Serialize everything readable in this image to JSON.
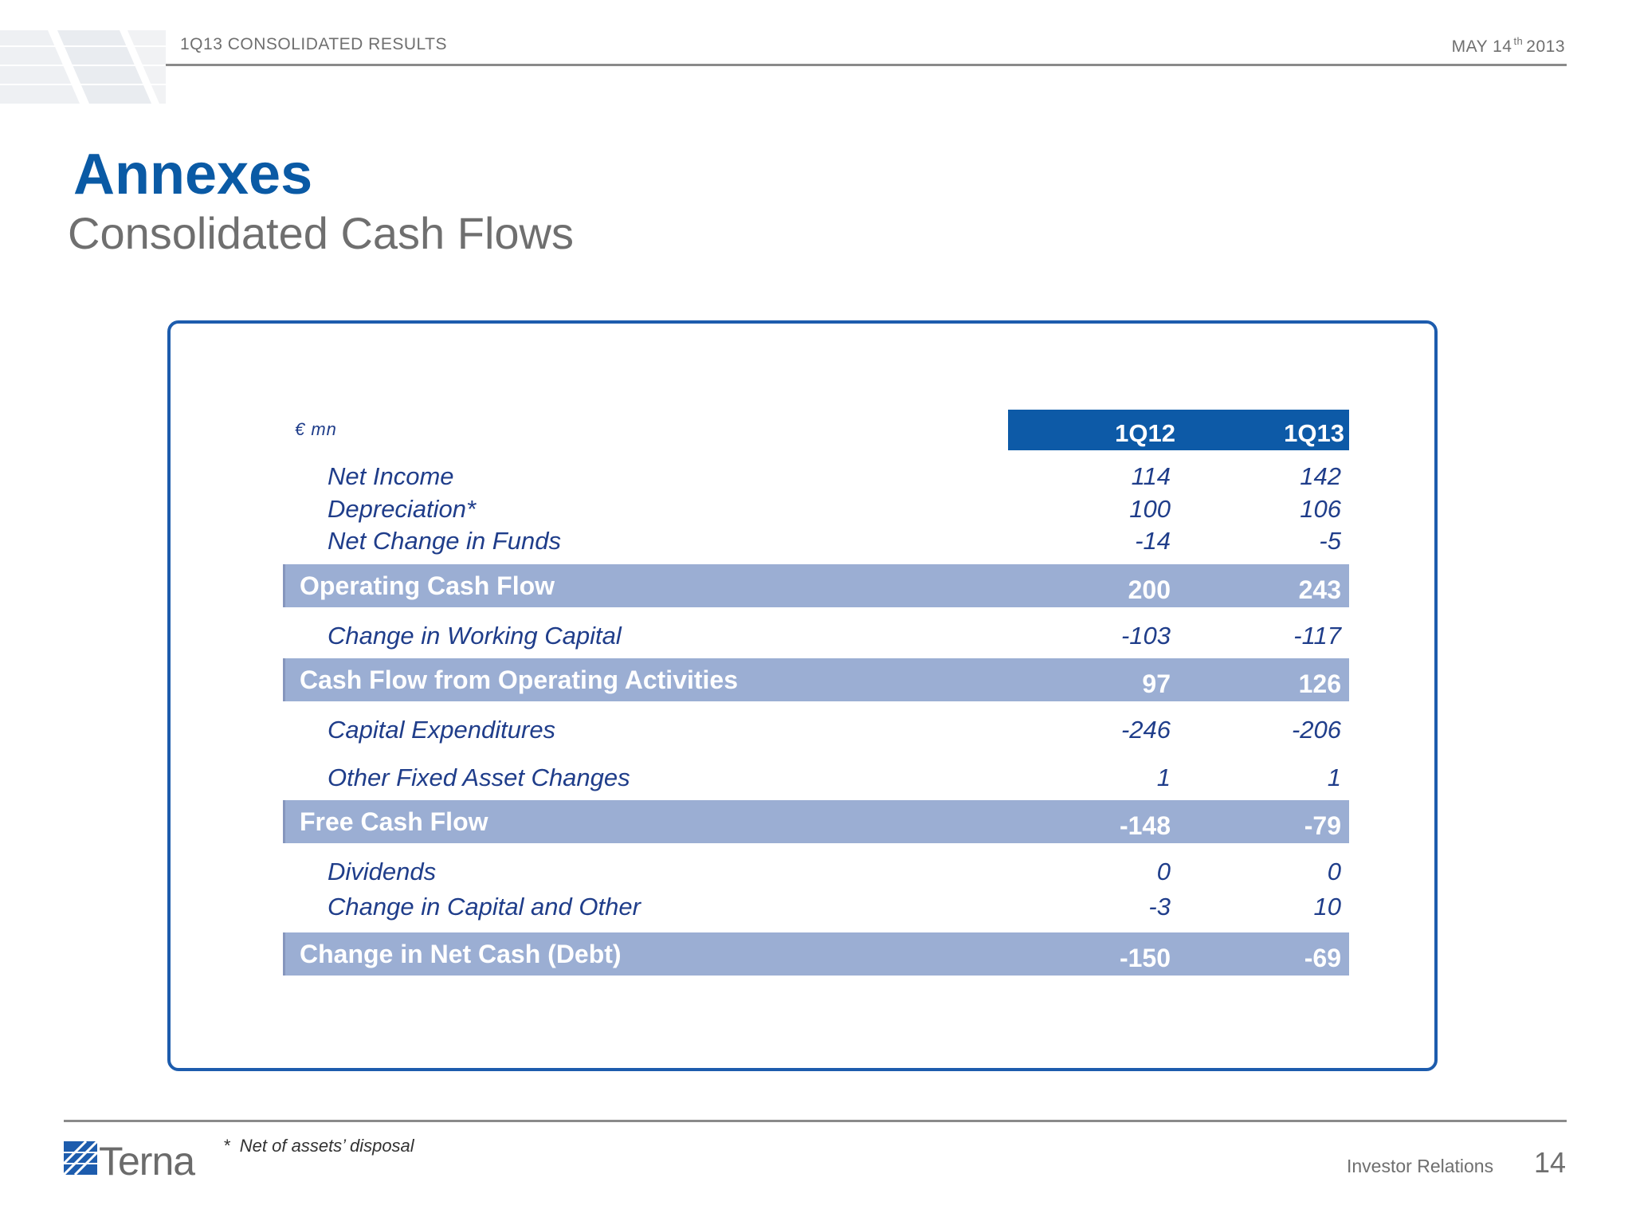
{
  "header": {
    "title": "1Q13 CONSOLIDATED RESULTS",
    "date_main": "MAY 14",
    "date_sup": "th",
    "date_year": "2013"
  },
  "title": "Annexes",
  "subtitle": "Consolidated Cash Flows",
  "table": {
    "unit": "€ mn",
    "columns": [
      "1Q12",
      "1Q13"
    ],
    "rows": [
      {
        "label": "Net Income",
        "v1": "114",
        "v2": "142"
      },
      {
        "label": "Depreciation*",
        "v1": "100",
        "v2": "106"
      },
      {
        "label": "Net Change in Funds",
        "v1": "-14",
        "v2": "-5"
      },
      {
        "label": "Operating Cash Flow",
        "v1": "200",
        "v2": "243"
      },
      {
        "label": "Change in Working Capital",
        "v1": "-103",
        "v2": "-117"
      },
      {
        "label": "Cash Flow from Operating Activities",
        "v1": "97",
        "v2": "126"
      },
      {
        "label": "Capital Expenditures",
        "v1": "-246",
        "v2": "-206"
      },
      {
        "label": "Other Fixed Asset Changes",
        "v1": "1",
        "v2": "1"
      },
      {
        "label": "Free Cash Flow",
        "v1": "-148",
        "v2": "-79"
      },
      {
        "label": "Dividends",
        "v1": "0",
        "v2": "0"
      },
      {
        "label": "Change in Capital and Other",
        "v1": "-3",
        "v2": "10"
      },
      {
        "label": "Change in Net Cash (Debt)",
        "v1": "-150",
        "v2": "-69"
      }
    ]
  },
  "footer": {
    "footnote": "*  Net of assets’ disposal",
    "logo_text": "Terna",
    "section": "Investor Relations",
    "page": "14"
  },
  "colors": {
    "brand_blue": "#0d5aa7",
    "band": "#9baed3",
    "text_blue": "#1f3d8a",
    "gray": "#6f6f6f"
  }
}
